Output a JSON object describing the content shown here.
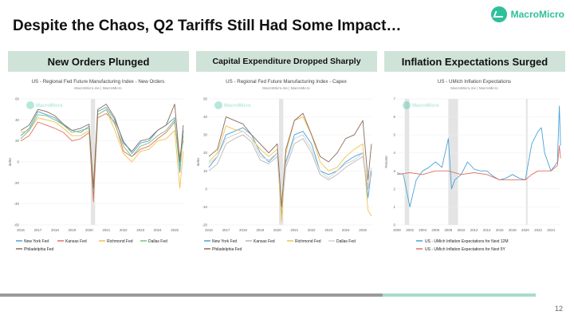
{
  "slide": {
    "title": "Despite the Chaos, Q2 Tariffs Still Had Some Impact…",
    "logo": "MacroMicro",
    "page_number": "12",
    "headers": [
      "New Orders Plunged",
      "Capital Expenditure Dropped Sharply",
      "Inflation Expectations Surged"
    ]
  },
  "colors": {
    "header_bg": "#cfe3d9",
    "brand": "#2fbf9b"
  },
  "chart_data": [
    {
      "type": "line",
      "title": "US - Regional Fed Future Manufacturing Index - New Orders",
      "subtitle": "MacroMicro.me | MacroMicro",
      "watermark": "MacroMicro",
      "xlabel": "",
      "ylabel": "Index",
      "xlim": [
        2016,
        2025.6
      ],
      "ylim": [
        -60,
        60
      ],
      "xticks": [
        "2016",
        "2017",
        "2018",
        "2019",
        "2020",
        "2021",
        "2022",
        "2023",
        "2024",
        "2025"
      ],
      "yticks": [
        "60",
        "40",
        "20",
        "0",
        "-20",
        "-40",
        "-60"
      ],
      "shade": [
        2020.1,
        2020.35
      ],
      "series": [
        {
          "name": "New York Fed",
          "color": "#4aa3d8",
          "x": [
            2016,
            2016.5,
            2017,
            2017.5,
            2018,
            2018.5,
            2019,
            2019.5,
            2020,
            2020.25,
            2020.5,
            2021,
            2021.5,
            2022,
            2022.5,
            2023,
            2023.5,
            2024,
            2024.5,
            2025,
            2025.3,
            2025.5
          ],
          "y": [
            25,
            32,
            48,
            45,
            42,
            35,
            30,
            28,
            34,
            -30,
            48,
            52,
            40,
            20,
            8,
            18,
            20,
            30,
            35,
            42,
            -10,
            30
          ]
        },
        {
          "name": "Kansas Fed",
          "color": "#e07060",
          "x": [
            2016,
            2016.5,
            2017,
            2017.5,
            2018,
            2018.5,
            2019,
            2019.5,
            2020,
            2020.25,
            2020.5,
            2021,
            2021.5,
            2022,
            2022.5,
            2023,
            2023.5,
            2024,
            2024.5,
            2025,
            2025.3,
            2025.5
          ],
          "y": [
            20,
            25,
            38,
            35,
            32,
            28,
            20,
            22,
            28,
            -38,
            42,
            46,
            38,
            10,
            5,
            12,
            15,
            22,
            28,
            38,
            5,
            20
          ]
        },
        {
          "name": "Richmond Fed",
          "color": "#f2c14e",
          "x": [
            2016,
            2016.5,
            2017,
            2017.5,
            2018,
            2018.5,
            2019,
            2019.5,
            2020,
            2020.25,
            2020.5,
            2021,
            2021.5,
            2022,
            2022.5,
            2023,
            2023.5,
            2024,
            2024.5,
            2025,
            2025.3,
            2025.5
          ],
          "y": [
            28,
            30,
            42,
            40,
            38,
            32,
            25,
            25,
            30,
            -22,
            45,
            50,
            30,
            8,
            0,
            10,
            12,
            20,
            22,
            30,
            -25,
            10
          ]
        },
        {
          "name": "Dallas Fed",
          "color": "#7cc07a",
          "x": [
            2016,
            2016.5,
            2017,
            2017.5,
            2018,
            2018.5,
            2019,
            2019.5,
            2020,
            2020.25,
            2020.5,
            2021,
            2021.5,
            2022,
            2022.5,
            2023,
            2023.5,
            2024,
            2024.5,
            2025,
            2025.3,
            2025.5
          ],
          "y": [
            22,
            30,
            45,
            44,
            40,
            35,
            28,
            30,
            32,
            -28,
            45,
            50,
            36,
            15,
            5,
            15,
            18,
            25,
            30,
            40,
            -5,
            25
          ]
        },
        {
          "name": "Philadelphia Fed",
          "color": "#8a6a5a",
          "x": [
            2016,
            2016.5,
            2017,
            2017.5,
            2018,
            2018.5,
            2019,
            2019.5,
            2020,
            2020.25,
            2020.5,
            2021,
            2021.5,
            2022,
            2022.5,
            2023,
            2023.5,
            2024,
            2024.5,
            2025,
            2025.3,
            2025.5
          ],
          "y": [
            30,
            35,
            50,
            48,
            44,
            36,
            30,
            32,
            36,
            -25,
            50,
            55,
            42,
            18,
            10,
            20,
            22,
            30,
            35,
            55,
            0,
            35
          ]
        }
      ]
    },
    {
      "type": "line",
      "title": "US - Regional Fed Future Manufacturing Index - Capex",
      "subtitle": "MacroMicro.me | MacroMicro",
      "watermark": "MacroMicro",
      "xlabel": "",
      "ylabel": "Index",
      "xlim": [
        2016,
        2025.6
      ],
      "ylim": [
        -20,
        50
      ],
      "xticks": [
        "2016",
        "2017",
        "2018",
        "2019",
        "2020",
        "2021",
        "2022",
        "2023",
        "2024",
        "2025"
      ],
      "yticks": [
        "50",
        "40",
        "30",
        "20",
        "10",
        "0",
        "-10",
        "-20"
      ],
      "shade": [
        2020.1,
        2020.35
      ],
      "series": [
        {
          "name": "New York Fed",
          "color": "#4aa3d8",
          "x": [
            2016,
            2016.5,
            2017,
            2017.5,
            2018,
            2018.5,
            2019,
            2019.5,
            2020,
            2020.25,
            2020.5,
            2021,
            2021.5,
            2022,
            2022.5,
            2023,
            2023.5,
            2024,
            2024.5,
            2025,
            2025.3,
            2025.5
          ],
          "y": [
            12,
            18,
            30,
            32,
            34,
            30,
            20,
            15,
            20,
            -15,
            15,
            30,
            32,
            25,
            10,
            8,
            10,
            15,
            18,
            20,
            -5,
            10
          ]
        },
        {
          "name": "Kansas Fed",
          "color": "#b8b8b8",
          "x": [
            2016,
            2016.5,
            2017,
            2017.5,
            2018,
            2018.5,
            2019,
            2019.5,
            2020,
            2020.25,
            2020.5,
            2021,
            2021.5,
            2022,
            2022.5,
            2023,
            2023.5,
            2024,
            2024.5,
            2025,
            2025.3,
            2025.5
          ],
          "y": [
            10,
            14,
            25,
            28,
            30,
            26,
            16,
            14,
            18,
            -12,
            12,
            25,
            28,
            20,
            8,
            5,
            8,
            12,
            15,
            18,
            0,
            8
          ]
        },
        {
          "name": "Richmond Fed",
          "color": "#f2c14e",
          "x": [
            2016,
            2016.5,
            2017,
            2017.5,
            2018,
            2018.5,
            2019,
            2019.5,
            2020,
            2020.25,
            2020.5,
            2021,
            2021.5,
            2022,
            2022.5,
            2023,
            2023.5,
            2024,
            2024.5,
            2025,
            2025.3,
            2025.5
          ],
          "y": [
            15,
            20,
            35,
            33,
            32,
            28,
            22,
            18,
            22,
            -18,
            20,
            38,
            40,
            30,
            15,
            10,
            12,
            18,
            22,
            25,
            -12,
            -15
          ]
        },
        {
          "name": "Dallas Fed",
          "color": "#d0d0d0",
          "x": [
            2016,
            2016.5,
            2017,
            2017.5,
            2018,
            2018.5,
            2019,
            2019.5,
            2020,
            2020.25,
            2020.5,
            2021,
            2021.5,
            2022,
            2022.5,
            2023,
            2023.5,
            2024,
            2024.5,
            2025,
            2025.3,
            2025.5
          ],
          "y": [
            14,
            18,
            28,
            30,
            32,
            28,
            18,
            16,
            20,
            -10,
            14,
            28,
            30,
            22,
            10,
            6,
            10,
            14,
            16,
            20,
            2,
            12
          ]
        },
        {
          "name": "Philadelphia Fed",
          "color": "#8a6a5a",
          "x": [
            2016,
            2016.5,
            2017,
            2017.5,
            2018,
            2018.5,
            2019,
            2019.5,
            2020,
            2020.25,
            2020.5,
            2021,
            2021.5,
            2022,
            2022.5,
            2023,
            2023.5,
            2024,
            2024.5,
            2025,
            2025.3,
            2025.5
          ],
          "y": [
            18,
            22,
            40,
            38,
            36,
            30,
            25,
            20,
            25,
            -10,
            22,
            38,
            42,
            30,
            18,
            15,
            20,
            28,
            30,
            38,
            5,
            25
          ]
        }
      ]
    },
    {
      "type": "line",
      "title": "US - UMich Inflation Expectations",
      "subtitle": "MacroMicro.me | MacroMicro",
      "watermark": "MacroMicro",
      "xlabel": "",
      "ylabel": "Percent",
      "xlim": [
        2000,
        2025.6
      ],
      "ylim": [
        0,
        7
      ],
      "xticks": [
        "2000",
        "2002",
        "2004",
        "2006",
        "2008",
        "2010",
        "2012",
        "2014",
        "2016",
        "2018",
        "2020",
        "2022",
        "2024"
      ],
      "yticks": [
        "7",
        "6",
        "5",
        "4",
        "3",
        "2",
        "1",
        "0"
      ],
      "shade": [
        2001.2,
        2001.9,
        2008.0,
        2009.5,
        2020.1,
        2020.35
      ],
      "series": [
        {
          "name": "US - UMich Inflation Expectations for Next 12M",
          "color": "#4aa3d8",
          "x": [
            2000,
            2001,
            2002,
            2003,
            2004,
            2005,
            2006,
            2007,
            2008,
            2008.5,
            2009,
            2010,
            2011,
            2012,
            2013,
            2014,
            2015,
            2016,
            2017,
            2018,
            2019,
            2020,
            2021,
            2022,
            2022.5,
            2023,
            2024,
            2025,
            2025.3,
            2025.5
          ],
          "y": [
            2.9,
            2.8,
            1.0,
            2.5,
            3.0,
            3.2,
            3.5,
            3.2,
            4.8,
            2.0,
            2.5,
            2.8,
            3.5,
            3.1,
            3.0,
            3.0,
            2.7,
            2.5,
            2.6,
            2.8,
            2.6,
            2.5,
            4.5,
            5.2,
            5.4,
            4.0,
            3.0,
            3.5,
            6.6,
            4.4
          ]
        },
        {
          "name": "US - UMich Inflation Expectations for Next 5Y",
          "color": "#e07060",
          "x": [
            2000,
            2002,
            2004,
            2006,
            2008,
            2010,
            2012,
            2014,
            2016,
            2018,
            2020,
            2021,
            2022,
            2023,
            2024,
            2025,
            2025.3,
            2025.5
          ],
          "y": [
            2.8,
            2.9,
            2.8,
            3.0,
            3.0,
            2.8,
            2.9,
            2.8,
            2.5,
            2.5,
            2.5,
            2.8,
            3.0,
            3.0,
            3.0,
            3.3,
            4.4,
            3.7
          ]
        }
      ]
    }
  ]
}
